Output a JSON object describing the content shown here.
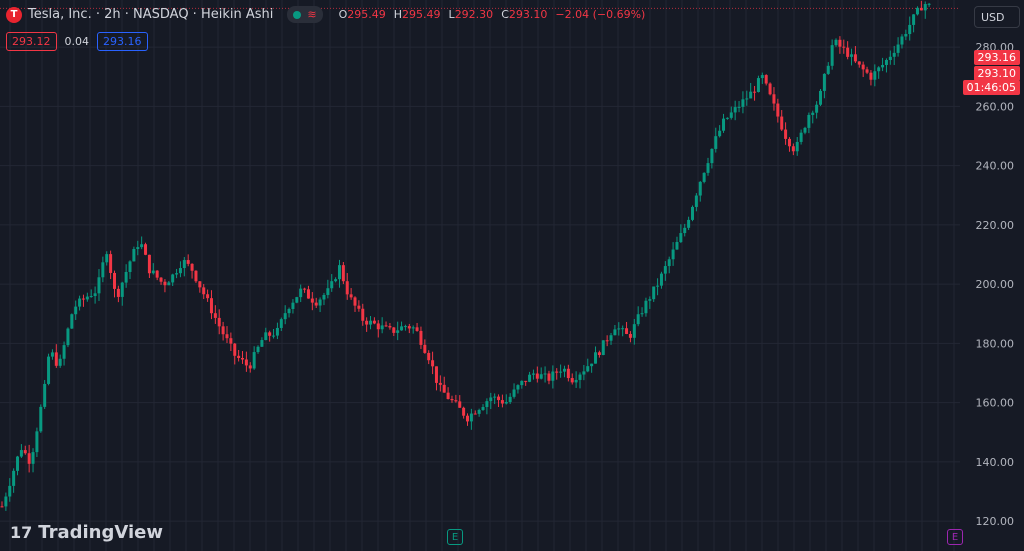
{
  "header": {
    "logo_letter": "T",
    "symbol_title": "Tesla, Inc. · 2h · NASDAQ · Heikin Ashi",
    "waves_icon": "≋",
    "ohlc": [
      {
        "label": "O",
        "value": "295.49"
      },
      {
        "label": "H",
        "value": "295.49"
      },
      {
        "label": "L",
        "value": "292.30"
      },
      {
        "label": "C",
        "value": "293.10"
      }
    ],
    "change": "−2.04 (−0.69%)"
  },
  "quote": {
    "bid": "293.12",
    "spread": "0.04",
    "ask": "293.16"
  },
  "currency": "USD",
  "price_tags": {
    "ask": "293.16",
    "last": "293.10",
    "countdown": "01:46:05"
  },
  "branding": {
    "name": "TradingView",
    "mark": "17"
  },
  "earnings_markers": [
    {
      "label": "E",
      "color": "#089981"
    },
    {
      "label": "E",
      "color": "#9c27b0"
    }
  ],
  "colors": {
    "up": "#089981",
    "down": "#f23645",
    "grid": "#232734",
    "bg": "#161a25"
  },
  "chart_data": {
    "type": "heikin-ashi candlestick",
    "y_ticks": [
      120,
      140,
      160,
      180,
      200,
      220,
      240,
      260,
      280
    ],
    "ylim": [
      116,
      302
    ],
    "last_price": 293.1,
    "series": [
      {
        "name": "Tesla, Inc.",
        "close_path": [
          [
            0,
            125
          ],
          [
            0.02,
            145
          ],
          [
            0.03,
            140
          ],
          [
            0.045,
            165
          ],
          [
            0.05,
            178
          ],
          [
            0.06,
            172
          ],
          [
            0.075,
            192
          ],
          [
            0.09,
            196
          ],
          [
            0.1,
            198
          ],
          [
            0.11,
            212
          ],
          [
            0.12,
            195
          ],
          [
            0.135,
            208
          ],
          [
            0.145,
            215
          ],
          [
            0.155,
            205
          ],
          [
            0.17,
            200
          ],
          [
            0.18,
            203
          ],
          [
            0.19,
            208
          ],
          [
            0.2,
            205
          ],
          [
            0.215,
            195
          ],
          [
            0.23,
            185
          ],
          [
            0.245,
            176
          ],
          [
            0.26,
            172
          ],
          [
            0.275,
            182
          ],
          [
            0.29,
            184
          ],
          [
            0.3,
            192
          ],
          [
            0.315,
            198
          ],
          [
            0.33,
            194
          ],
          [
            0.345,
            198
          ],
          [
            0.355,
            206
          ],
          [
            0.365,
            196
          ],
          [
            0.38,
            188
          ],
          [
            0.395,
            186
          ],
          [
            0.41,
            184
          ],
          [
            0.425,
            186
          ],
          [
            0.435,
            185
          ],
          [
            0.45,
            175
          ],
          [
            0.46,
            165
          ],
          [
            0.475,
            160
          ],
          [
            0.49,
            155
          ],
          [
            0.5,
            158
          ],
          [
            0.515,
            162
          ],
          [
            0.53,
            160
          ],
          [
            0.545,
            166
          ],
          [
            0.56,
            170
          ],
          [
            0.575,
            168
          ],
          [
            0.59,
            172
          ],
          [
            0.6,
            168
          ],
          [
            0.615,
            172
          ],
          [
            0.63,
            178
          ],
          [
            0.645,
            186
          ],
          [
            0.66,
            182
          ],
          [
            0.675,
            192
          ],
          [
            0.69,
            200
          ],
          [
            0.705,
            210
          ],
          [
            0.72,
            220
          ],
          [
            0.735,
            235
          ],
          [
            0.75,
            248
          ],
          [
            0.76,
            255
          ],
          [
            0.775,
            260
          ],
          [
            0.79,
            265
          ],
          [
            0.8,
            270
          ],
          [
            0.81,
            262
          ],
          [
            0.825,
            250
          ],
          [
            0.835,
            245
          ],
          [
            0.85,
            258
          ],
          [
            0.86,
            262
          ],
          [
            0.875,
            282
          ],
          [
            0.89,
            278
          ],
          [
            0.9,
            274
          ],
          [
            0.915,
            270
          ],
          [
            0.93,
            275
          ],
          [
            0.945,
            282
          ],
          [
            0.96,
            290
          ],
          [
            0.97,
            295
          ],
          [
            0.98,
            293.1
          ]
        ]
      }
    ]
  }
}
